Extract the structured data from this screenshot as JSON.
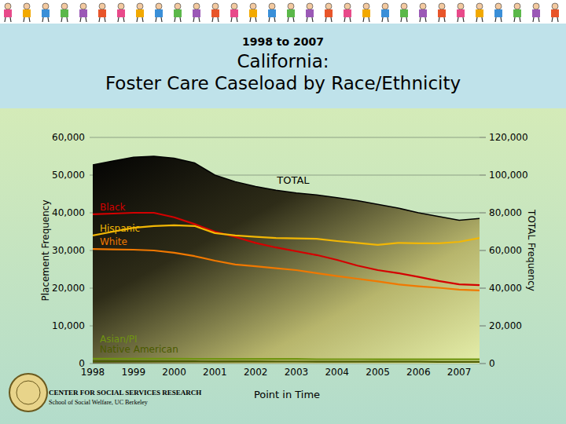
{
  "chart_data": {
    "type": "line",
    "subtitle": "1998 to 2007",
    "title": [
      "California:",
      "Foster Care Caseload by Race/Ethnicity"
    ],
    "xlabel": "Point in Time",
    "ylabel": "Placement Frequency",
    "y2label": "TOTAL Frequency",
    "source": [
      "CENTER FOR SOCIAL SERVICES RESEARCH",
      "School of Social Welfare, UC Berkeley"
    ],
    "categories": [
      "1998",
      null,
      "1999",
      null,
      "2000",
      null,
      "2001",
      null,
      "2002",
      null,
      "2003",
      null,
      "2004",
      null,
      "2005",
      null,
      "2006",
      null,
      "2007",
      null
    ],
    "ylim": [
      0,
      60000
    ],
    "yticks": [
      0,
      {
        "value": 10000,
        "label": "10,000"
      },
      {
        "value": 20000,
        "label": "20,000"
      },
      {
        "value": 30000,
        "label": "30,000"
      },
      {
        "value": 40000,
        "label": "40,000"
      },
      {
        "value": 50000,
        "label": "50,000"
      },
      {
        "value": 60000,
        "label": "60,000"
      }
    ],
    "y2lim": [
      0,
      120000
    ],
    "y2ticks": [
      0,
      {
        "value": 20000,
        "label": "20,000"
      },
      {
        "value": 40000,
        "label": "40,000"
      },
      {
        "value": 60000,
        "label": "60,000"
      },
      {
        "value": 80000,
        "label": "80,000"
      },
      {
        "value": 100000,
        "label": "100,000"
      },
      {
        "value": 120000,
        "label": "120,000"
      }
    ],
    "grid": true,
    "series": [
      {
        "name": "TOTAL",
        "type": "area",
        "axis": "y2",
        "color": "#000000",
        "values": [
          105400,
          107500,
          109500,
          110000,
          109000,
          106500,
          100000,
          96500,
          94000,
          92000,
          90500,
          89500,
          88000,
          86500,
          84500,
          82500,
          80000,
          78000,
          76000,
          77000
        ]
      },
      {
        "name": "Black",
        "color": "#d40000",
        "values": [
          39600,
          39800,
          40000,
          40000,
          38800,
          37000,
          35000,
          33600,
          32000,
          30800,
          29800,
          28800,
          27500,
          26000,
          24800,
          24000,
          23000,
          21900,
          21000,
          20800
        ]
      },
      {
        "name": "Hispanic",
        "color": "#f2b705",
        "values": [
          34000,
          35000,
          36000,
          36500,
          36700,
          36500,
          34600,
          34000,
          33600,
          33300,
          33200,
          33100,
          32500,
          32000,
          31500,
          32000,
          31900,
          31900,
          32300,
          33300
        ]
      },
      {
        "name": "White",
        "color": "#f07800",
        "values": [
          30400,
          30300,
          30200,
          30000,
          29400,
          28500,
          27300,
          26300,
          25800,
          25300,
          24800,
          24000,
          23200,
          22500,
          21800,
          21000,
          20500,
          20100,
          19600,
          19400
        ]
      },
      {
        "name": "Asian/PI",
        "color": "#6f9410",
        "values": [
          1300,
          1300,
          1300,
          1300,
          1300,
          1250,
          1250,
          1200,
          1200,
          1200,
          1200,
          1150,
          1150,
          1150,
          1100,
          1100,
          1100,
          1100,
          1100,
          1100
        ]
      },
      {
        "name": "Native American",
        "color": "#4a5a00",
        "values": [
          600,
          600,
          600,
          600,
          600,
          580,
          560,
          550,
          540,
          530,
          520,
          510,
          500,
          500,
          490,
          480,
          470,
          460,
          450,
          450
        ]
      }
    ]
  }
}
